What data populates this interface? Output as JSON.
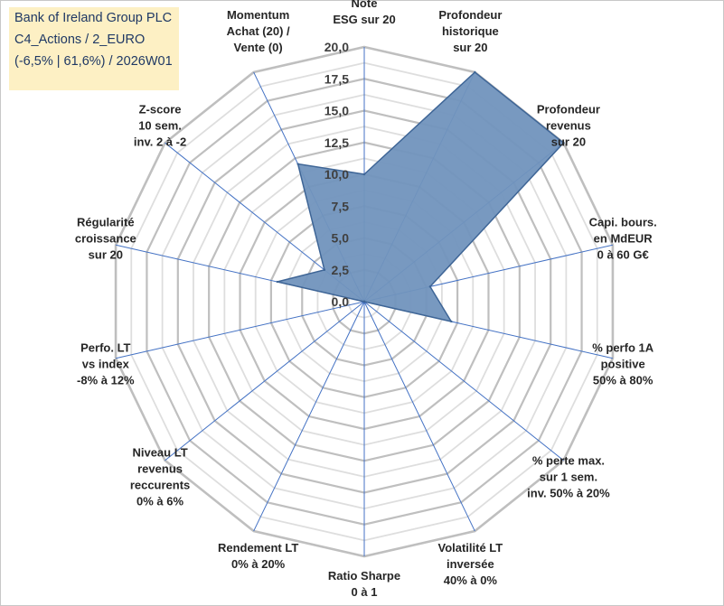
{
  "title": {
    "lines": [
      "Bank of Ireland Group PLC",
      "C4_Actions / 2_EURO",
      "(-6,5% | 61,6%) / 2026W01"
    ]
  },
  "colors": {
    "fill": "#7193bd",
    "stroke": "#3e6596",
    "grid_major": "#bfbfbf",
    "grid_minor": "#dedede",
    "spoke": "#4472c4",
    "title_bg": "#fdf0c4",
    "title_text": "#1f3864"
  },
  "chart_data": {
    "type": "radar",
    "r_range": [
      0,
      20
    ],
    "r_ticks": [
      "0,0",
      "2,5",
      "5,0",
      "7,5",
      "10,0",
      "12,5",
      "15,0",
      "17,5",
      "20,0"
    ],
    "axes": [
      {
        "label": [
          "Note",
          "ESG sur 20"
        ],
        "value": 10.0
      },
      {
        "label": [
          "Profondeur",
          "historique",
          "sur 20"
        ],
        "value": 20.0
      },
      {
        "label": [
          "Profondeur",
          "revenus",
          "sur 20"
        ],
        "value": 20.0
      },
      {
        "label": [
          "Capi. bours.",
          "en MdEUR",
          "0 à 60 G€"
        ],
        "value": 5.3
      },
      {
        "label": [
          "% perfo 1A",
          "positive",
          "50% à 80%"
        ],
        "value": 7.0
      },
      {
        "label": [
          "% perte max.",
          "sur 1 sem.",
          "inv. 50% à 20%"
        ],
        "value": 0.0
      },
      {
        "label": [
          "Volatilité LT",
          "inversée",
          "40% à 0%"
        ],
        "value": 0.0
      },
      {
        "label": [
          "Ratio Sharpe",
          "0 à 1"
        ],
        "value": 0.0
      },
      {
        "label": [
          "Rendement LT",
          "0% à 20%"
        ],
        "value": 0.0
      },
      {
        "label": [
          "Niveau LT",
          "revenus",
          "reccurents",
          "0% à 6%"
        ],
        "value": 0.0
      },
      {
        "label": [
          "Perfo. LT",
          "vs index",
          "-8% à 12%"
        ],
        "value": 0.0
      },
      {
        "label": [
          "Régularité",
          "croissance",
          "sur 20"
        ],
        "value": 7.0
      },
      {
        "label": [
          "Z-score",
          "10 sem.",
          "inv. 2 à -2"
        ],
        "value": 4.0
      },
      {
        "label": [
          "Momentum",
          "Achat (20) /",
          "Vente (0)"
        ],
        "value": 12.0
      }
    ]
  }
}
